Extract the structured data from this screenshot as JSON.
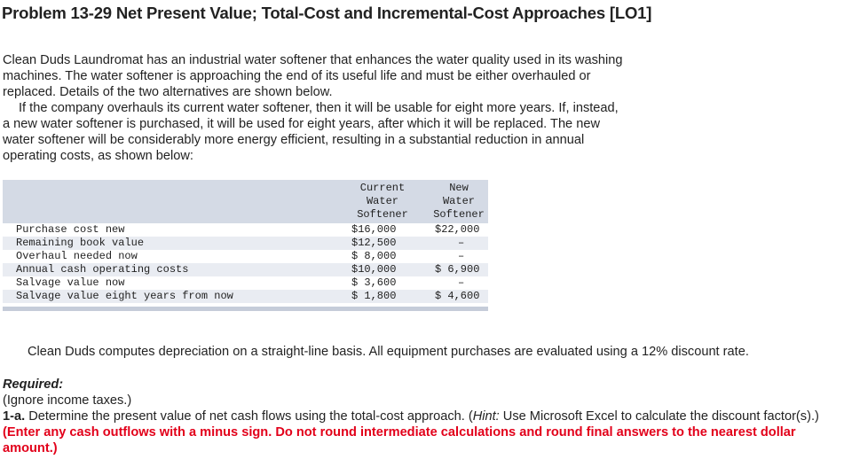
{
  "title": "Problem 13-29 Net Present Value; Total-Cost and Incremental-Cost Approaches [LO1]",
  "intro": {
    "p1": "Clean Duds Laundromat has an industrial water softener that enhances the water quality used in its washing machines. The water softener is approaching the end of its useful life and must be either overhauled or replaced. Details of the two alternatives are shown below.",
    "p2": "If the company overhauls its current water softener, then it will be usable for eight more years. If, instead, a new water softener is purchased, it will be used for eight years, after which it will be replaced. The new water softener will be considerably more energy efficient, resulting in a substantial reduction in annual operating costs, as shown below:"
  },
  "table": {
    "headers": {
      "current": [
        "Current",
        "Water",
        "Softener"
      ],
      "new": [
        "New",
        "Water",
        "Softener"
      ]
    },
    "rows": [
      {
        "label": "Purchase cost new",
        "current": "$16,000",
        "new": "$22,000"
      },
      {
        "label": "Remaining book value",
        "current": "$12,500",
        "new": "–"
      },
      {
        "label": "Overhaul needed now",
        "current": "$ 8,000",
        "new": "–"
      },
      {
        "label": "Annual cash operating costs",
        "current": "$10,000",
        "new": "$ 6,900"
      },
      {
        "label": "Salvage value now",
        "current": "$ 3,600",
        "new": "–"
      },
      {
        "label": "Salvage value eight years from now",
        "current": "$ 1,800",
        "new": "$ 4,600"
      }
    ]
  },
  "depreciation_note": "Clean Duds computes depreciation on a straight-line basis. All equipment purchases are evaluated using a 12% discount rate.",
  "required": {
    "heading": "Required:",
    "ignore": "(Ignore income taxes.)",
    "part_label": "1-a.",
    "part_text": " Determine the present value of net cash flows using the total-cost approach. (",
    "hint_label": "Hint:",
    "hint_text": " Use Microsoft Excel to calculate the discount factor(s).) ",
    "instruction": "(Enter any cash outflows with a minus sign. Do not round intermediate calculations and round final answers to the nearest dollar amount.)"
  }
}
